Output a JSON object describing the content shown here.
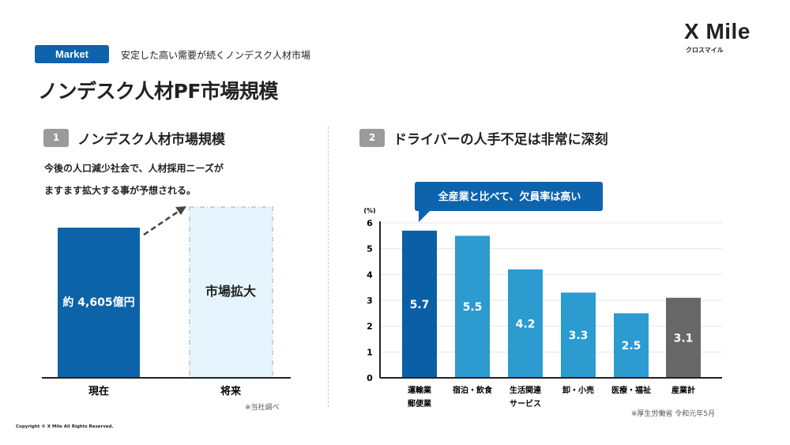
{
  "header": {
    "badge": "Market",
    "subtitle": "安定した高い需要が続くノンデスク人材市場",
    "title": "ノンデスク人材PF市場規模"
  },
  "logo": {
    "name": "X Mile",
    "kana": "クロスマイル"
  },
  "section1": {
    "number": "1",
    "heading": "ノンデスク人材市場規模",
    "body_lines": [
      "今後の人口減少社会で、人材採用ニーズが",
      "ますます拡大する事が予想される。"
    ],
    "current_value_label": "約 4,605億円",
    "future_label": "市場拡大",
    "categories": [
      "現在",
      "将来"
    ],
    "note": "※当社調べ",
    "colors": {
      "current": "#0d63a8",
      "future": "#e6f5fd"
    }
  },
  "section2": {
    "number": "2",
    "heading": "ドライバーの人手不足は非常に深刻",
    "callout": "全産業と比べて、欠員率は高い",
    "source": "※厚生労働省 令和元年5月"
  },
  "chart_data": {
    "type": "bar",
    "ylabel": "(%)",
    "ylim": [
      0,
      6
    ],
    "yticks": [
      0,
      1,
      2,
      3,
      4,
      5,
      6
    ],
    "grid": true,
    "categories": [
      [
        "運輸業",
        "郵便業"
      ],
      [
        "宿泊・飲食"
      ],
      [
        "生活関連",
        "サービス"
      ],
      [
        "卸・小売"
      ],
      [
        "医療・福祉"
      ],
      [
        "産業計"
      ]
    ],
    "values": [
      5.7,
      5.5,
      4.2,
      3.3,
      2.5,
      3.1
    ],
    "colors": [
      "#0a5fa6",
      "#2b9bd0",
      "#2b9bd0",
      "#2b9bd0",
      "#2b9bd0",
      "#676767"
    ]
  },
  "copyright": "Copyright © X Mile All Rights Reserved."
}
